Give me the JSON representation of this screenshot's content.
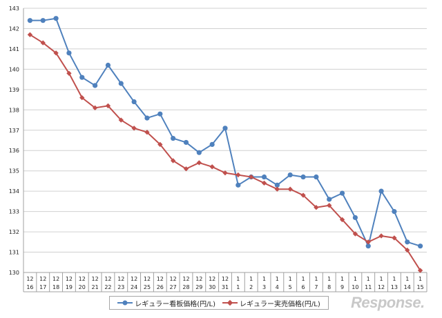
{
  "chart_data": {
    "type": "line",
    "title": "",
    "xlabel": "",
    "ylabel": "",
    "ylim": [
      130,
      143
    ],
    "yticks": [
      130,
      131,
      132,
      133,
      134,
      135,
      136,
      137,
      138,
      139,
      140,
      141,
      142,
      143
    ],
    "grid": true,
    "legend_position": "bottom-center",
    "categories": [
      {
        "month": "12",
        "day": "16"
      },
      {
        "month": "12",
        "day": "17"
      },
      {
        "month": "12",
        "day": "18"
      },
      {
        "month": "12",
        "day": "19"
      },
      {
        "month": "12",
        "day": "20"
      },
      {
        "month": "12",
        "day": "21"
      },
      {
        "month": "12",
        "day": "22"
      },
      {
        "month": "12",
        "day": "23"
      },
      {
        "month": "12",
        "day": "24"
      },
      {
        "month": "12",
        "day": "25"
      },
      {
        "month": "12",
        "day": "26"
      },
      {
        "month": "12",
        "day": "27"
      },
      {
        "month": "12",
        "day": "28"
      },
      {
        "month": "12",
        "day": "29"
      },
      {
        "month": "12",
        "day": "30"
      },
      {
        "month": "12",
        "day": "31"
      },
      {
        "month": "1",
        "day": "1"
      },
      {
        "month": "1",
        "day": "2"
      },
      {
        "month": "1",
        "day": "3"
      },
      {
        "month": "1",
        "day": "4"
      },
      {
        "month": "1",
        "day": "5"
      },
      {
        "month": "1",
        "day": "6"
      },
      {
        "month": "1",
        "day": "7"
      },
      {
        "month": "1",
        "day": "8"
      },
      {
        "month": "1",
        "day": "9"
      },
      {
        "month": "1",
        "day": "10"
      },
      {
        "month": "1",
        "day": "11"
      },
      {
        "month": "1",
        "day": "12"
      },
      {
        "month": "1",
        "day": "13"
      },
      {
        "month": "1",
        "day": "14"
      },
      {
        "month": "1",
        "day": "15"
      }
    ],
    "series": [
      {
        "name": "レギュラー看板価格(円/L)",
        "color": "#4f81bd",
        "marker": "circle",
        "values": [
          142.4,
          142.4,
          142.5,
          140.8,
          139.6,
          139.2,
          140.2,
          139.3,
          138.4,
          137.6,
          137.8,
          136.6,
          136.4,
          135.9,
          136.3,
          137.1,
          134.3,
          134.7,
          134.7,
          134.3,
          134.8,
          134.7,
          134.7,
          133.6,
          133.9,
          132.7,
          131.3,
          134.0,
          133.0,
          131.5,
          131.3
        ]
      },
      {
        "name": "レギュラー実売価格(円/L)",
        "color": "#c0504d",
        "marker": "diamond",
        "values": [
          141.7,
          141.3,
          140.8,
          139.8,
          138.6,
          138.1,
          138.2,
          137.5,
          137.1,
          136.9,
          136.3,
          135.5,
          135.1,
          135.4,
          135.2,
          134.9,
          134.8,
          134.7,
          134.4,
          134.1,
          134.1,
          133.8,
          133.2,
          133.3,
          132.6,
          131.9,
          131.5,
          131.8,
          131.7,
          131.1,
          130.1
        ]
      }
    ]
  },
  "watermark": "Response."
}
